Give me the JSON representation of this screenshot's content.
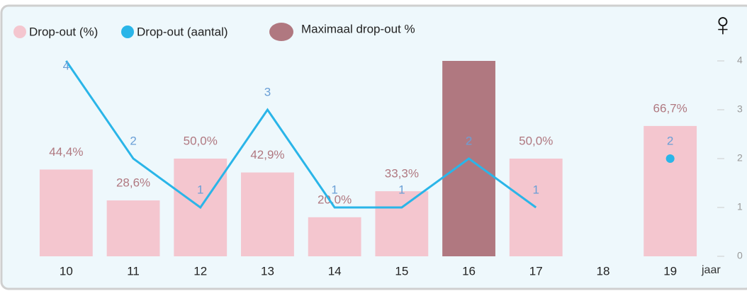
{
  "chart_data": {
    "type": "bar-line",
    "symbol": "♀",
    "x_label": "jaar",
    "categories": [
      "10",
      "11",
      "12",
      "13",
      "14",
      "15",
      "16",
      "17",
      "18",
      "19"
    ],
    "series": [
      {
        "name": "Drop-out (%)",
        "kind": "bar",
        "color": "#f4c6cf",
        "values": [
          44.4,
          28.6,
          50.0,
          42.9,
          20.0,
          33.3,
          null,
          50.0,
          null,
          66.7
        ],
        "value_labels": [
          "44,4%",
          "28,6%",
          "50,0%",
          "42,9%",
          "20,0%",
          "33,3%",
          null,
          "50,0%",
          null,
          "66,7%"
        ]
      },
      {
        "name": "Drop-out (aantal)",
        "kind": "line",
        "axis": "y2",
        "color": "#2ab5e8",
        "values": [
          4,
          2,
          1,
          3,
          1,
          1,
          2,
          1,
          null,
          2
        ]
      },
      {
        "name": "Maximaal drop-out %",
        "kind": "bar",
        "color": "#b07880",
        "values": [
          null,
          null,
          null,
          null,
          null,
          null,
          100,
          null,
          null,
          null
        ]
      }
    ],
    "ylim": [
      0,
      100
    ],
    "y2lim": [
      0,
      4
    ],
    "y2ticks": [
      0,
      1,
      2,
      3,
      4
    ]
  }
}
